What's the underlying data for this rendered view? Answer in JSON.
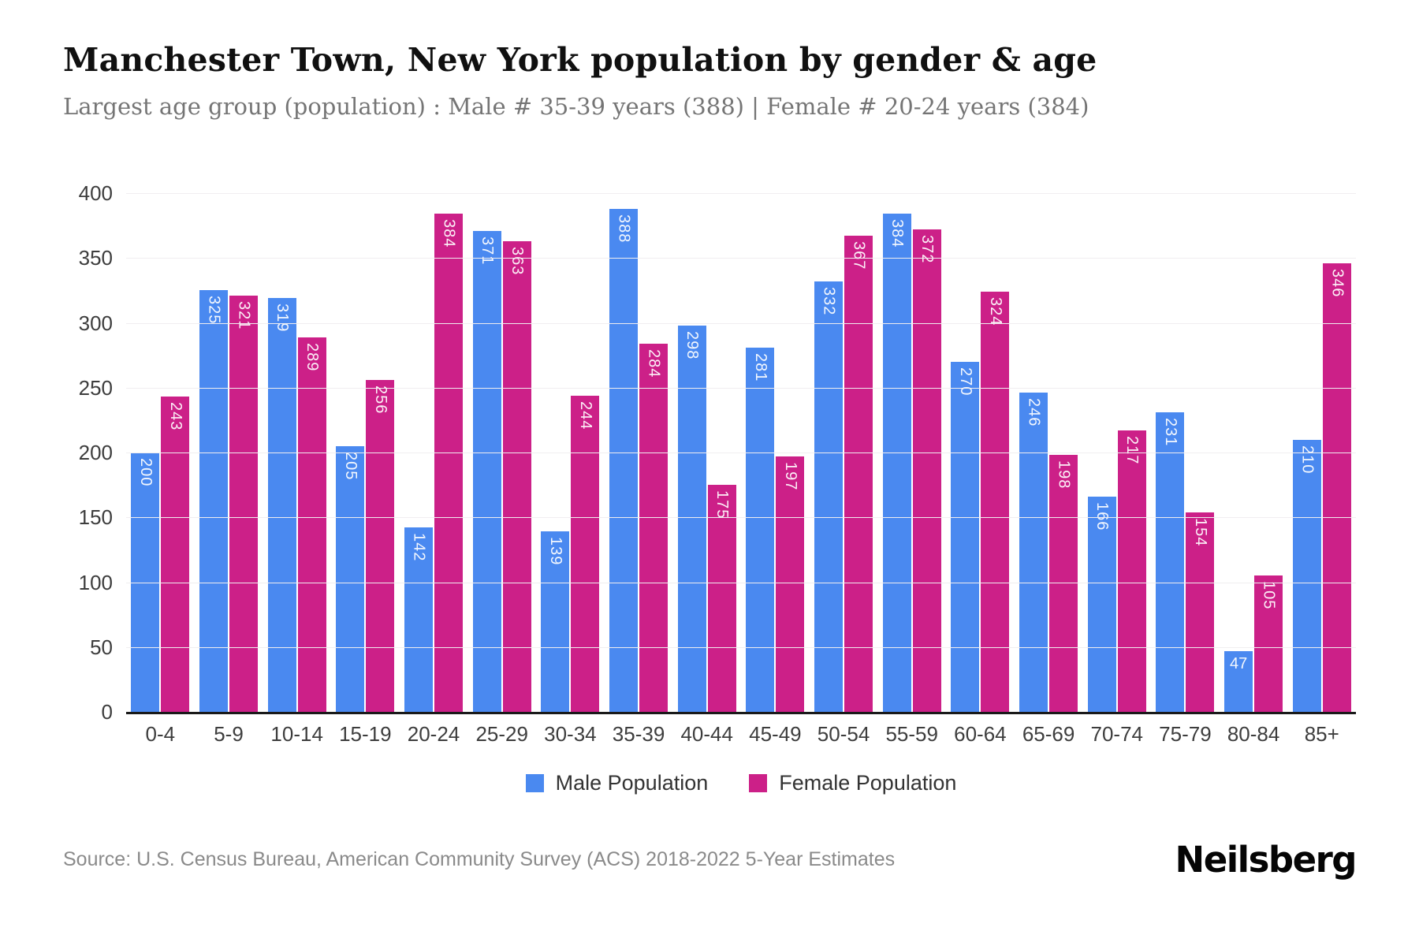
{
  "title": "Manchester Town, New York population by gender & age",
  "subtitle": "Largest age group (population) : Male # 35-39 years (388) | Female # 20-24 years (384)",
  "source": "Source: U.S. Census Bureau, American Community Survey (ACS) 2018-2022 5-Year Estimates",
  "brand": "Neilsberg",
  "colors": {
    "male": "#4a89f0",
    "female": "#cc2088",
    "grid": "#f0eef0",
    "axis_line": "#1a1a1a",
    "tick_text": "#3d3d3d",
    "subtitle_text": "#757575"
  },
  "chart_data": {
    "type": "bar",
    "title": "Manchester Town, New York population by gender & age",
    "xlabel": "",
    "ylabel": "",
    "categories": [
      "0-4",
      "5-9",
      "10-14",
      "15-19",
      "20-24",
      "25-29",
      "30-34",
      "35-39",
      "40-44",
      "45-49",
      "50-54",
      "55-59",
      "60-64",
      "65-69",
      "70-74",
      "75-79",
      "80-84",
      "85+"
    ],
    "series": [
      {
        "name": "Male Population",
        "color": "#4a89f0",
        "values": [
          200,
          325,
          319,
          205,
          142,
          371,
          139,
          388,
          298,
          281,
          332,
          384,
          270,
          246,
          166,
          231,
          47,
          210
        ]
      },
      {
        "name": "Female Population",
        "color": "#cc2088",
        "values": [
          243,
          321,
          289,
          256,
          384,
          363,
          244,
          284,
          175,
          197,
          367,
          372,
          324,
          198,
          217,
          154,
          105,
          346
        ]
      }
    ],
    "ylim": [
      0,
      400
    ],
    "yticks": [
      0,
      50,
      100,
      150,
      200,
      250,
      300,
      350,
      400
    ],
    "grid": true,
    "legend_position": "bottom",
    "bar_value_labels": "inside-top"
  },
  "legend": {
    "items": [
      {
        "label": "Male Population",
        "color": "#4a89f0"
      },
      {
        "label": "Female Population",
        "color": "#cc2088"
      }
    ]
  }
}
